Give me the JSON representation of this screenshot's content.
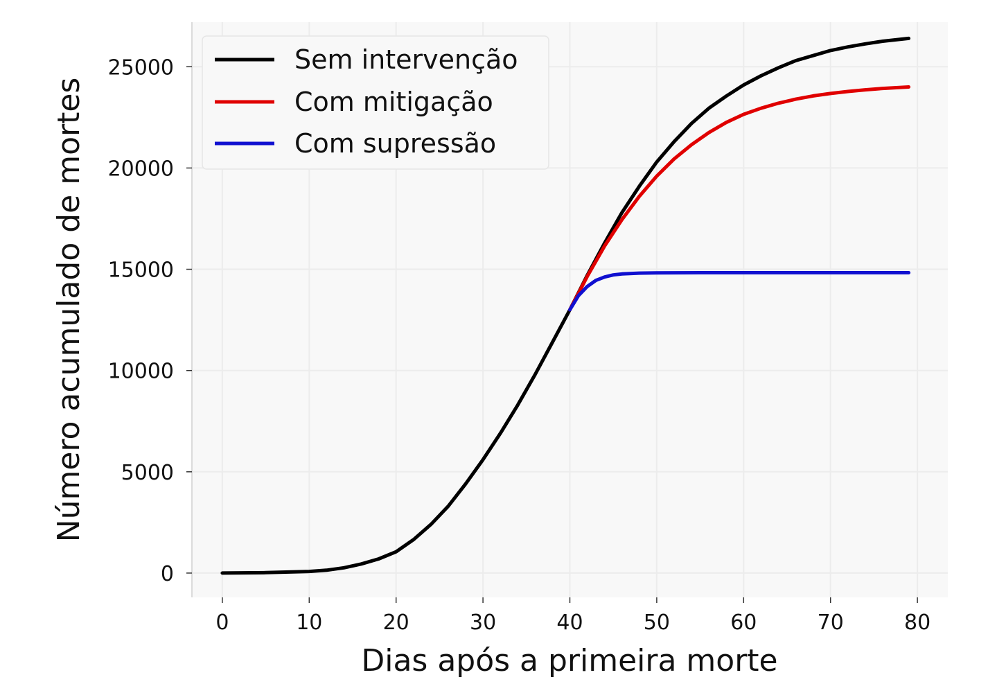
{
  "chart_data": {
    "type": "line",
    "title": "",
    "xlabel": "Dias após a primeira morte",
    "ylabel": "Número acumulado de mortes",
    "xlim": [
      -3.5,
      83.5
    ],
    "ylim": [
      -1200,
      27200
    ],
    "xticks": [
      0,
      10,
      20,
      30,
      40,
      50,
      60,
      70,
      80
    ],
    "yticks": [
      0,
      5000,
      10000,
      15000,
      20000,
      25000
    ],
    "grid": true,
    "legend": "top-left",
    "series": [
      {
        "name": "Sem intervenção",
        "color": "#000000",
        "x": [
          0,
          5,
          10,
          12,
          14,
          16,
          18,
          20,
          22,
          24,
          26,
          28,
          30,
          32,
          34,
          36,
          38,
          40,
          42,
          44,
          46,
          48,
          50,
          52,
          54,
          56,
          58,
          60,
          62,
          64,
          66,
          68,
          70,
          72,
          74,
          76,
          79
        ],
        "y": [
          0,
          20,
          80,
          140,
          260,
          450,
          700,
          1050,
          1650,
          2400,
          3300,
          4400,
          5600,
          6900,
          8300,
          9800,
          11400,
          13000,
          14700,
          16300,
          17800,
          19100,
          20300,
          21300,
          22200,
          22950,
          23550,
          24100,
          24550,
          24950,
          25300,
          25550,
          25800,
          25980,
          26130,
          26260,
          26400
        ]
      },
      {
        "name": "Com mitigação",
        "color": "#e00000",
        "x": [
          40,
          42,
          44,
          46,
          48,
          50,
          52,
          54,
          56,
          58,
          60,
          62,
          64,
          66,
          68,
          70,
          72,
          74,
          76,
          79
        ],
        "y": [
          13000,
          14650,
          16150,
          17450,
          18600,
          19600,
          20450,
          21150,
          21750,
          22250,
          22650,
          22950,
          23200,
          23400,
          23560,
          23680,
          23780,
          23860,
          23930,
          24000
        ]
      },
      {
        "name": "Com supressão",
        "color": "#1010d0",
        "x": [
          40,
          41,
          42,
          43,
          44,
          45,
          46,
          48,
          50,
          55,
          60,
          70,
          79
        ],
        "y": [
          13000,
          13700,
          14150,
          14450,
          14620,
          14720,
          14770,
          14810,
          14820,
          14830,
          14830,
          14830,
          14830
        ]
      }
    ]
  }
}
